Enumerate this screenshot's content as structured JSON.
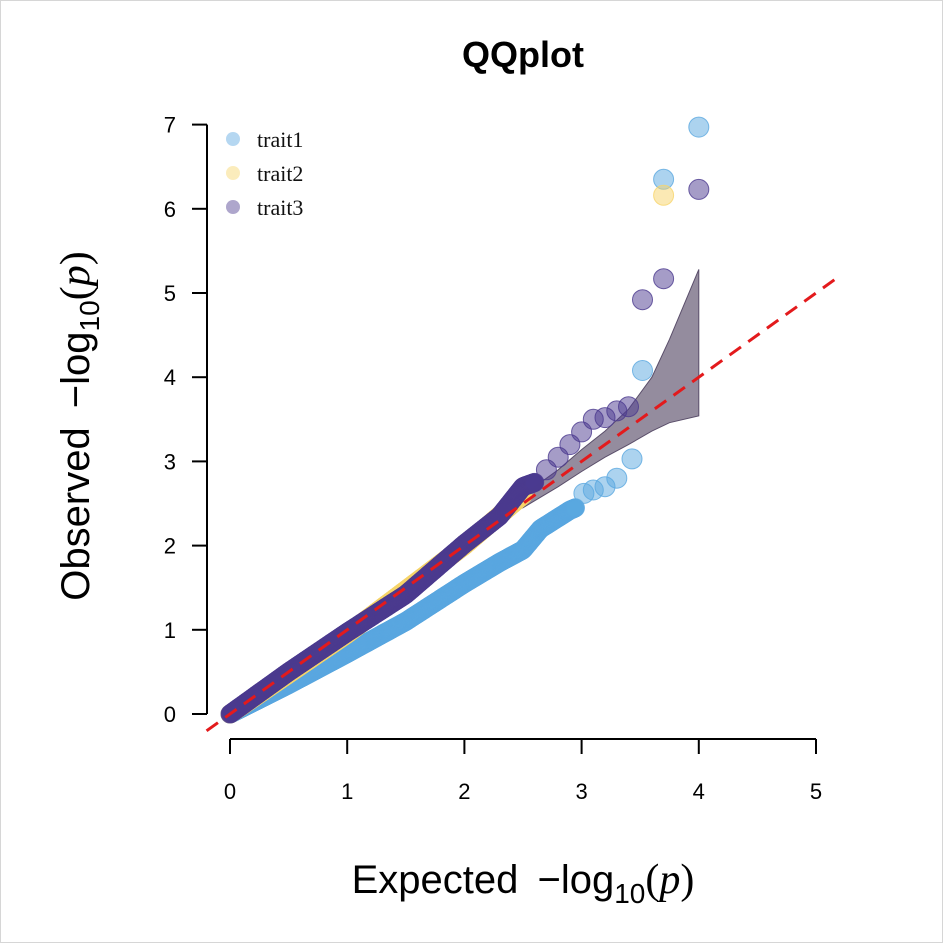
{
  "chart_data": {
    "type": "scatter",
    "title": "QQplot",
    "xlabel": {
      "prefix": "Expected ",
      "minus": "−",
      "log": "log",
      "sub": "10",
      "p": "p"
    },
    "ylabel": {
      "prefix": "Observed ",
      "minus": "−",
      "log": "log",
      "sub": "10",
      "p": "p"
    },
    "xlim": [
      0,
      5
    ],
    "ylim": [
      0,
      7
    ],
    "xticks": [
      0,
      1,
      2,
      3,
      4,
      5
    ],
    "yticks": [
      0,
      1,
      2,
      3,
      4,
      5,
      6,
      7
    ],
    "grid": false,
    "legend_position": "top-left",
    "reference_line": {
      "slope": 1,
      "intercept": 0,
      "color": "#e31a1c",
      "style": "dashed"
    },
    "confidence_band": {
      "color": "#5a4e6a",
      "upper": [
        [
          2.5,
          2.6
        ],
        [
          2.8,
          2.9
        ],
        [
          3.0,
          3.14
        ],
        [
          3.2,
          3.36
        ],
        [
          3.4,
          3.62
        ],
        [
          3.6,
          4.0
        ],
        [
          3.75,
          4.45
        ],
        [
          4.0,
          5.28
        ]
      ],
      "lower": [
        [
          2.5,
          2.45
        ],
        [
          2.8,
          2.7
        ],
        [
          3.0,
          2.88
        ],
        [
          3.2,
          3.05
        ],
        [
          3.4,
          3.2
        ],
        [
          3.6,
          3.36
        ],
        [
          3.75,
          3.46
        ],
        [
          4.0,
          3.54
        ]
      ]
    },
    "series": [
      {
        "name": "trait1",
        "color": "#5aa7e0",
        "trend": [
          [
            0,
            0
          ],
          [
            0.5,
            0.35
          ],
          [
            1.0,
            0.72
          ],
          [
            1.5,
            1.1
          ],
          [
            2.0,
            1.55
          ],
          [
            2.3,
            1.8
          ],
          [
            2.5,
            1.95
          ],
          [
            2.65,
            2.2
          ],
          [
            2.9,
            2.42
          ],
          [
            2.95,
            2.45
          ]
        ],
        "tail": [
          [
            3.02,
            2.62
          ],
          [
            3.1,
            2.66
          ],
          [
            3.2,
            2.7
          ],
          [
            3.3,
            2.8
          ],
          [
            3.43,
            3.03
          ],
          [
            3.52,
            4.08
          ],
          [
            3.7,
            6.35
          ],
          [
            4.0,
            6.97
          ]
        ]
      },
      {
        "name": "trait2",
        "color": "#f7d46a",
        "trend": [
          [
            0,
            0
          ],
          [
            1.0,
            0.95
          ],
          [
            2.0,
            2.0
          ],
          [
            2.5,
            2.6
          ]
        ],
        "tail": [
          [
            3.7,
            6.16
          ]
        ]
      },
      {
        "name": "trait3",
        "color": "#4b3a8f",
        "trend": [
          [
            0,
            0
          ],
          [
            0.5,
            0.5
          ],
          [
            1.0,
            0.97
          ],
          [
            1.5,
            1.42
          ],
          [
            2.0,
            2.02
          ],
          [
            2.3,
            2.35
          ],
          [
            2.5,
            2.7
          ],
          [
            2.6,
            2.75
          ]
        ],
        "tail": [
          [
            2.7,
            2.9
          ],
          [
            2.8,
            3.05
          ],
          [
            2.9,
            3.2
          ],
          [
            3.0,
            3.35
          ],
          [
            3.1,
            3.5
          ],
          [
            3.2,
            3.52
          ],
          [
            3.3,
            3.6
          ],
          [
            3.4,
            3.65
          ],
          [
            3.52,
            4.92
          ],
          [
            3.7,
            5.17
          ],
          [
            4.0,
            6.23
          ]
        ]
      }
    ]
  }
}
